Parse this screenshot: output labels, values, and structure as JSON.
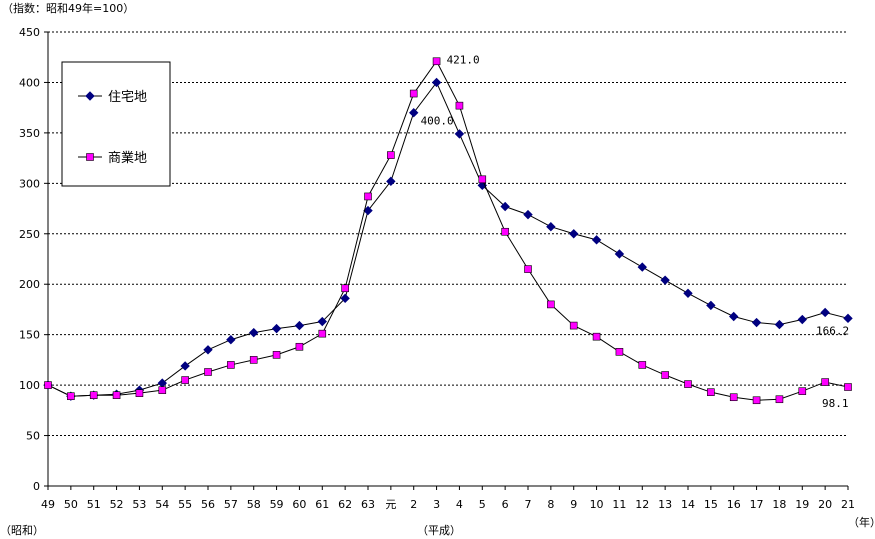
{
  "chart_data": {
    "type": "line",
    "unit_note": "（指数：昭和49年=100）",
    "ylim": [
      0,
      450
    ],
    "yticks": [
      0,
      50,
      100,
      150,
      200,
      250,
      300,
      350,
      400,
      450
    ],
    "categories": [
      "49",
      "50",
      "51",
      "52",
      "53",
      "54",
      "55",
      "56",
      "57",
      "58",
      "59",
      "60",
      "61",
      "62",
      "63",
      "元",
      "2",
      "3",
      "4",
      "5",
      "6",
      "7",
      "8",
      "9",
      "10",
      "11",
      "12",
      "13",
      "14",
      "15",
      "16",
      "17",
      "18",
      "19",
      "20",
      "21"
    ],
    "era_labels": {
      "showa": "（昭和）",
      "heisei": "（平成）",
      "year_unit": "（年）"
    },
    "grid": "horizontal-dashed",
    "legend_position": "top-left",
    "series": [
      {
        "name": "住宅地",
        "marker": "diamond",
        "color": "#000080",
        "values": [
          100,
          89,
          90,
          91,
          95,
          102,
          119,
          135,
          145,
          152,
          156,
          159,
          163,
          186,
          273,
          302,
          370,
          400,
          349,
          298,
          277,
          269,
          257,
          250,
          244,
          230,
          217,
          204,
          191,
          179,
          168,
          162,
          160,
          165,
          172,
          166.2
        ]
      },
      {
        "name": "商業地",
        "marker": "square",
        "color": "#ff00ff",
        "values": [
          100,
          89,
          90,
          90,
          92,
          95,
          105,
          113,
          120,
          125,
          130,
          138,
          151,
          196,
          287,
          328,
          389,
          421,
          377,
          304,
          252,
          215,
          180,
          159,
          148,
          133,
          120,
          110,
          101,
          93,
          88,
          85,
          86,
          94,
          103,
          98.1
        ]
      }
    ],
    "annotations": [
      {
        "series": "商業地",
        "category": "3",
        "label": "421.0"
      },
      {
        "series": "住宅地",
        "category": "3",
        "label": "400.0"
      },
      {
        "series": "住宅地",
        "category": "21",
        "label": "166.2"
      },
      {
        "series": "商業地",
        "category": "21",
        "label": "98.1"
      }
    ]
  }
}
